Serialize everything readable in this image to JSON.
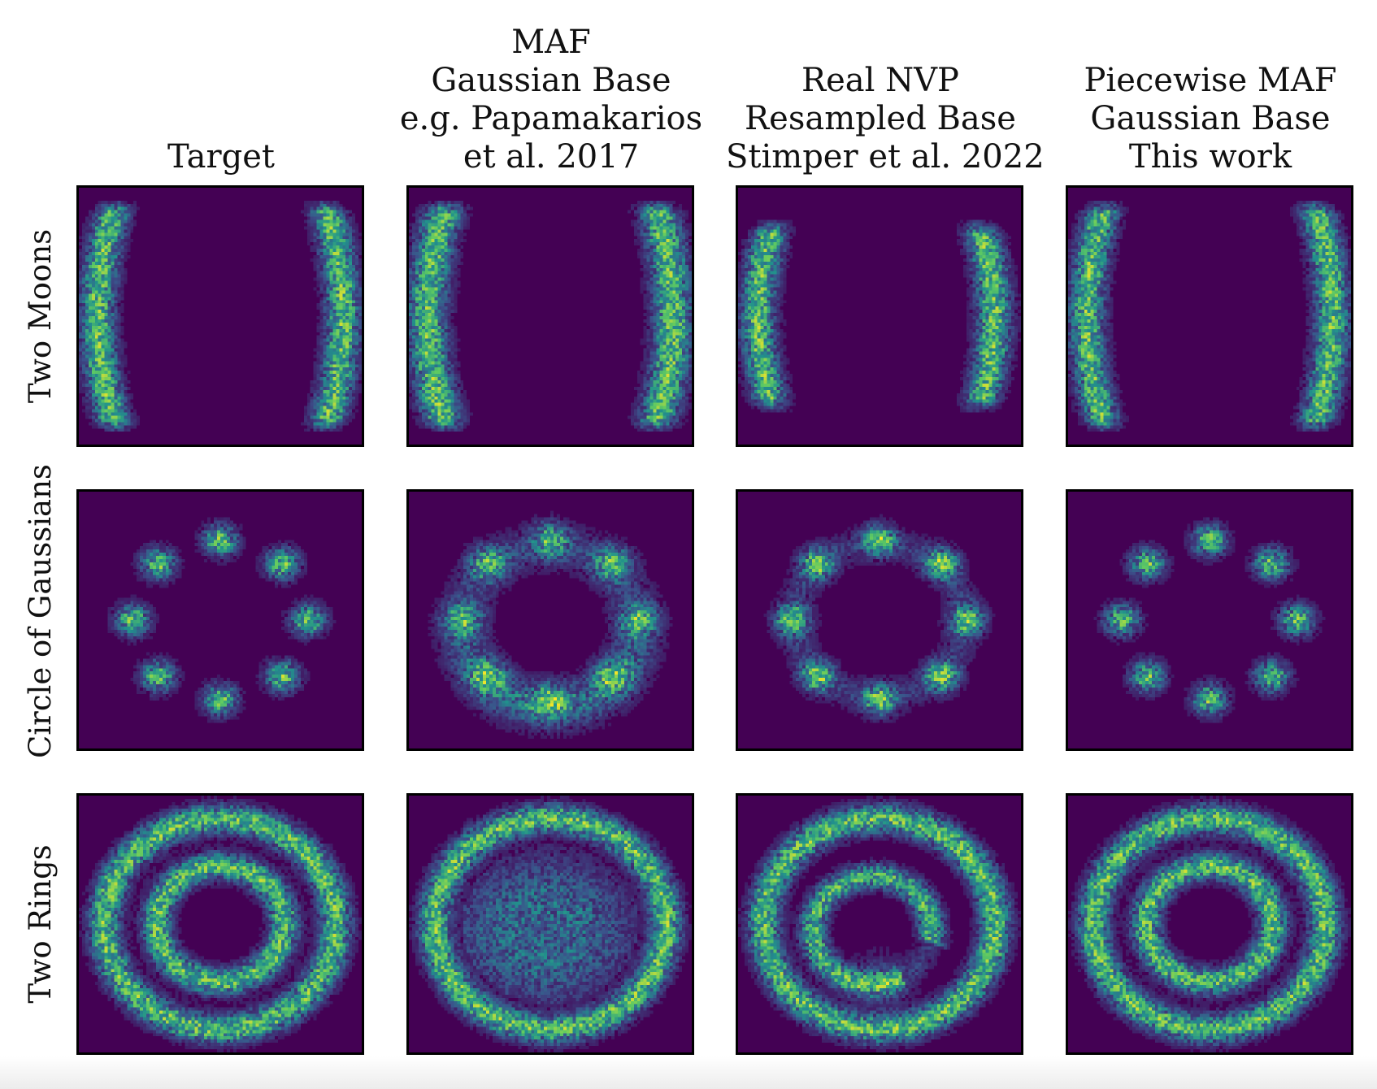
{
  "chart_data": {
    "type": "heatmap",
    "colormap": "viridis",
    "grid": false,
    "columns": [
      {
        "lines": [
          "Target"
        ]
      },
      {
        "lines": [
          "MAF",
          "Gaussian Base",
          "e.g. Papamakarios",
          "et al. 2017"
        ]
      },
      {
        "lines": [
          "Real NVP",
          "Resampled Base",
          "Stimper et al. 2022"
        ]
      },
      {
        "lines": [
          "Piecewise MAF",
          "Gaussian Base",
          "This work"
        ]
      }
    ],
    "rows": [
      {
        "label": "Two Moons",
        "distribution": "two-moons"
      },
      {
        "label": "Circle of Gaussians",
        "distribution": "circle-of-gaussians",
        "components": 8
      },
      {
        "label": "Two Rings",
        "distribution": "two-rings"
      }
    ]
  },
  "colors": {
    "background": "#440154",
    "low": "#3b528b",
    "mid": "#21918c",
    "high": "#5ec962",
    "peak": "#fde725"
  }
}
